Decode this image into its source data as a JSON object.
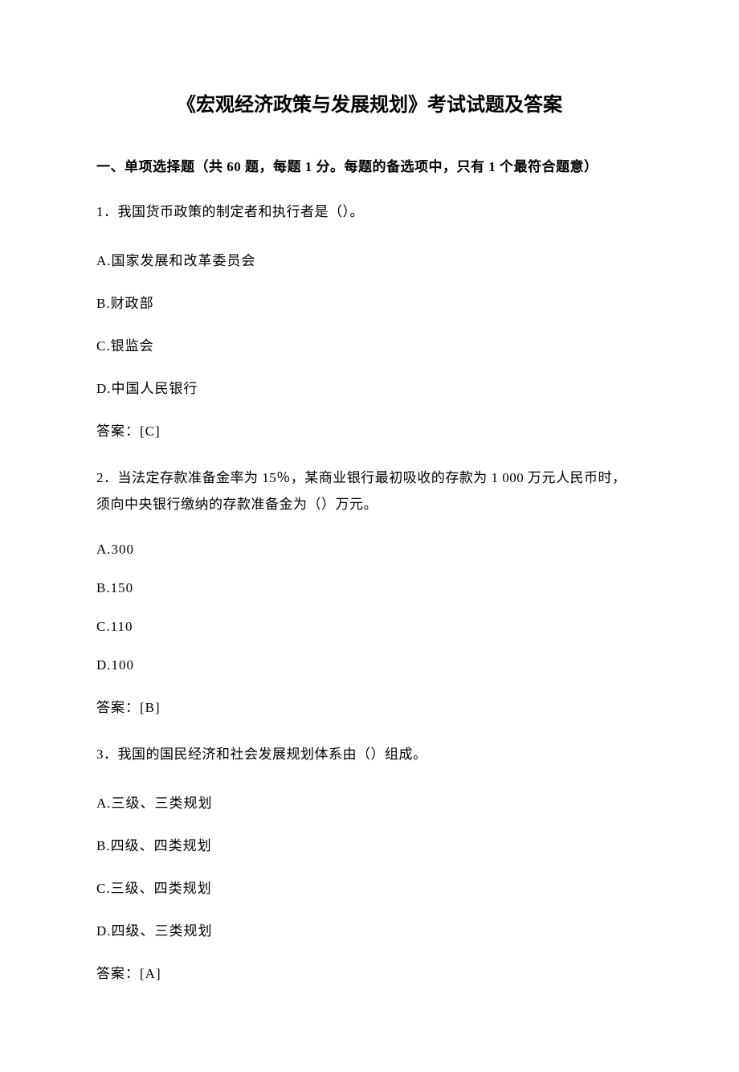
{
  "title": "《宏观经济政策与发展规划》考试试题及答案",
  "section_heading": "一、单项选择题（共 60 题，每题 1 分。每题的备选项中，只有 1 个最符合题意）",
  "questions": [
    {
      "text": "1．我国货币政策的制定者和执行者是（）。",
      "options": [
        "A.国家发展和改革委员会",
        "B.财政部",
        "C.银监会",
        "D.中国人民银行"
      ],
      "answer": "答案：[C]"
    },
    {
      "text": "2．当法定存款准备金率为 15％，某商业银行最初吸收的存款为 1 000 万元人民币时， 须向中央银行缴纳的存款准备金为（）万元。",
      "options": [
        "A.300",
        "B.150",
        "C.110",
        "D.100"
      ],
      "answer": "答案：[B]"
    },
    {
      "text": "3．我国的国民经济和社会发展规划体系由（）组成。",
      "options": [
        "A.三级、三类规划",
        "B.四级、四类规划",
        "C.三级、四类规划",
        "D.四级、三类规划"
      ],
      "answer": "答案：[A]"
    }
  ]
}
